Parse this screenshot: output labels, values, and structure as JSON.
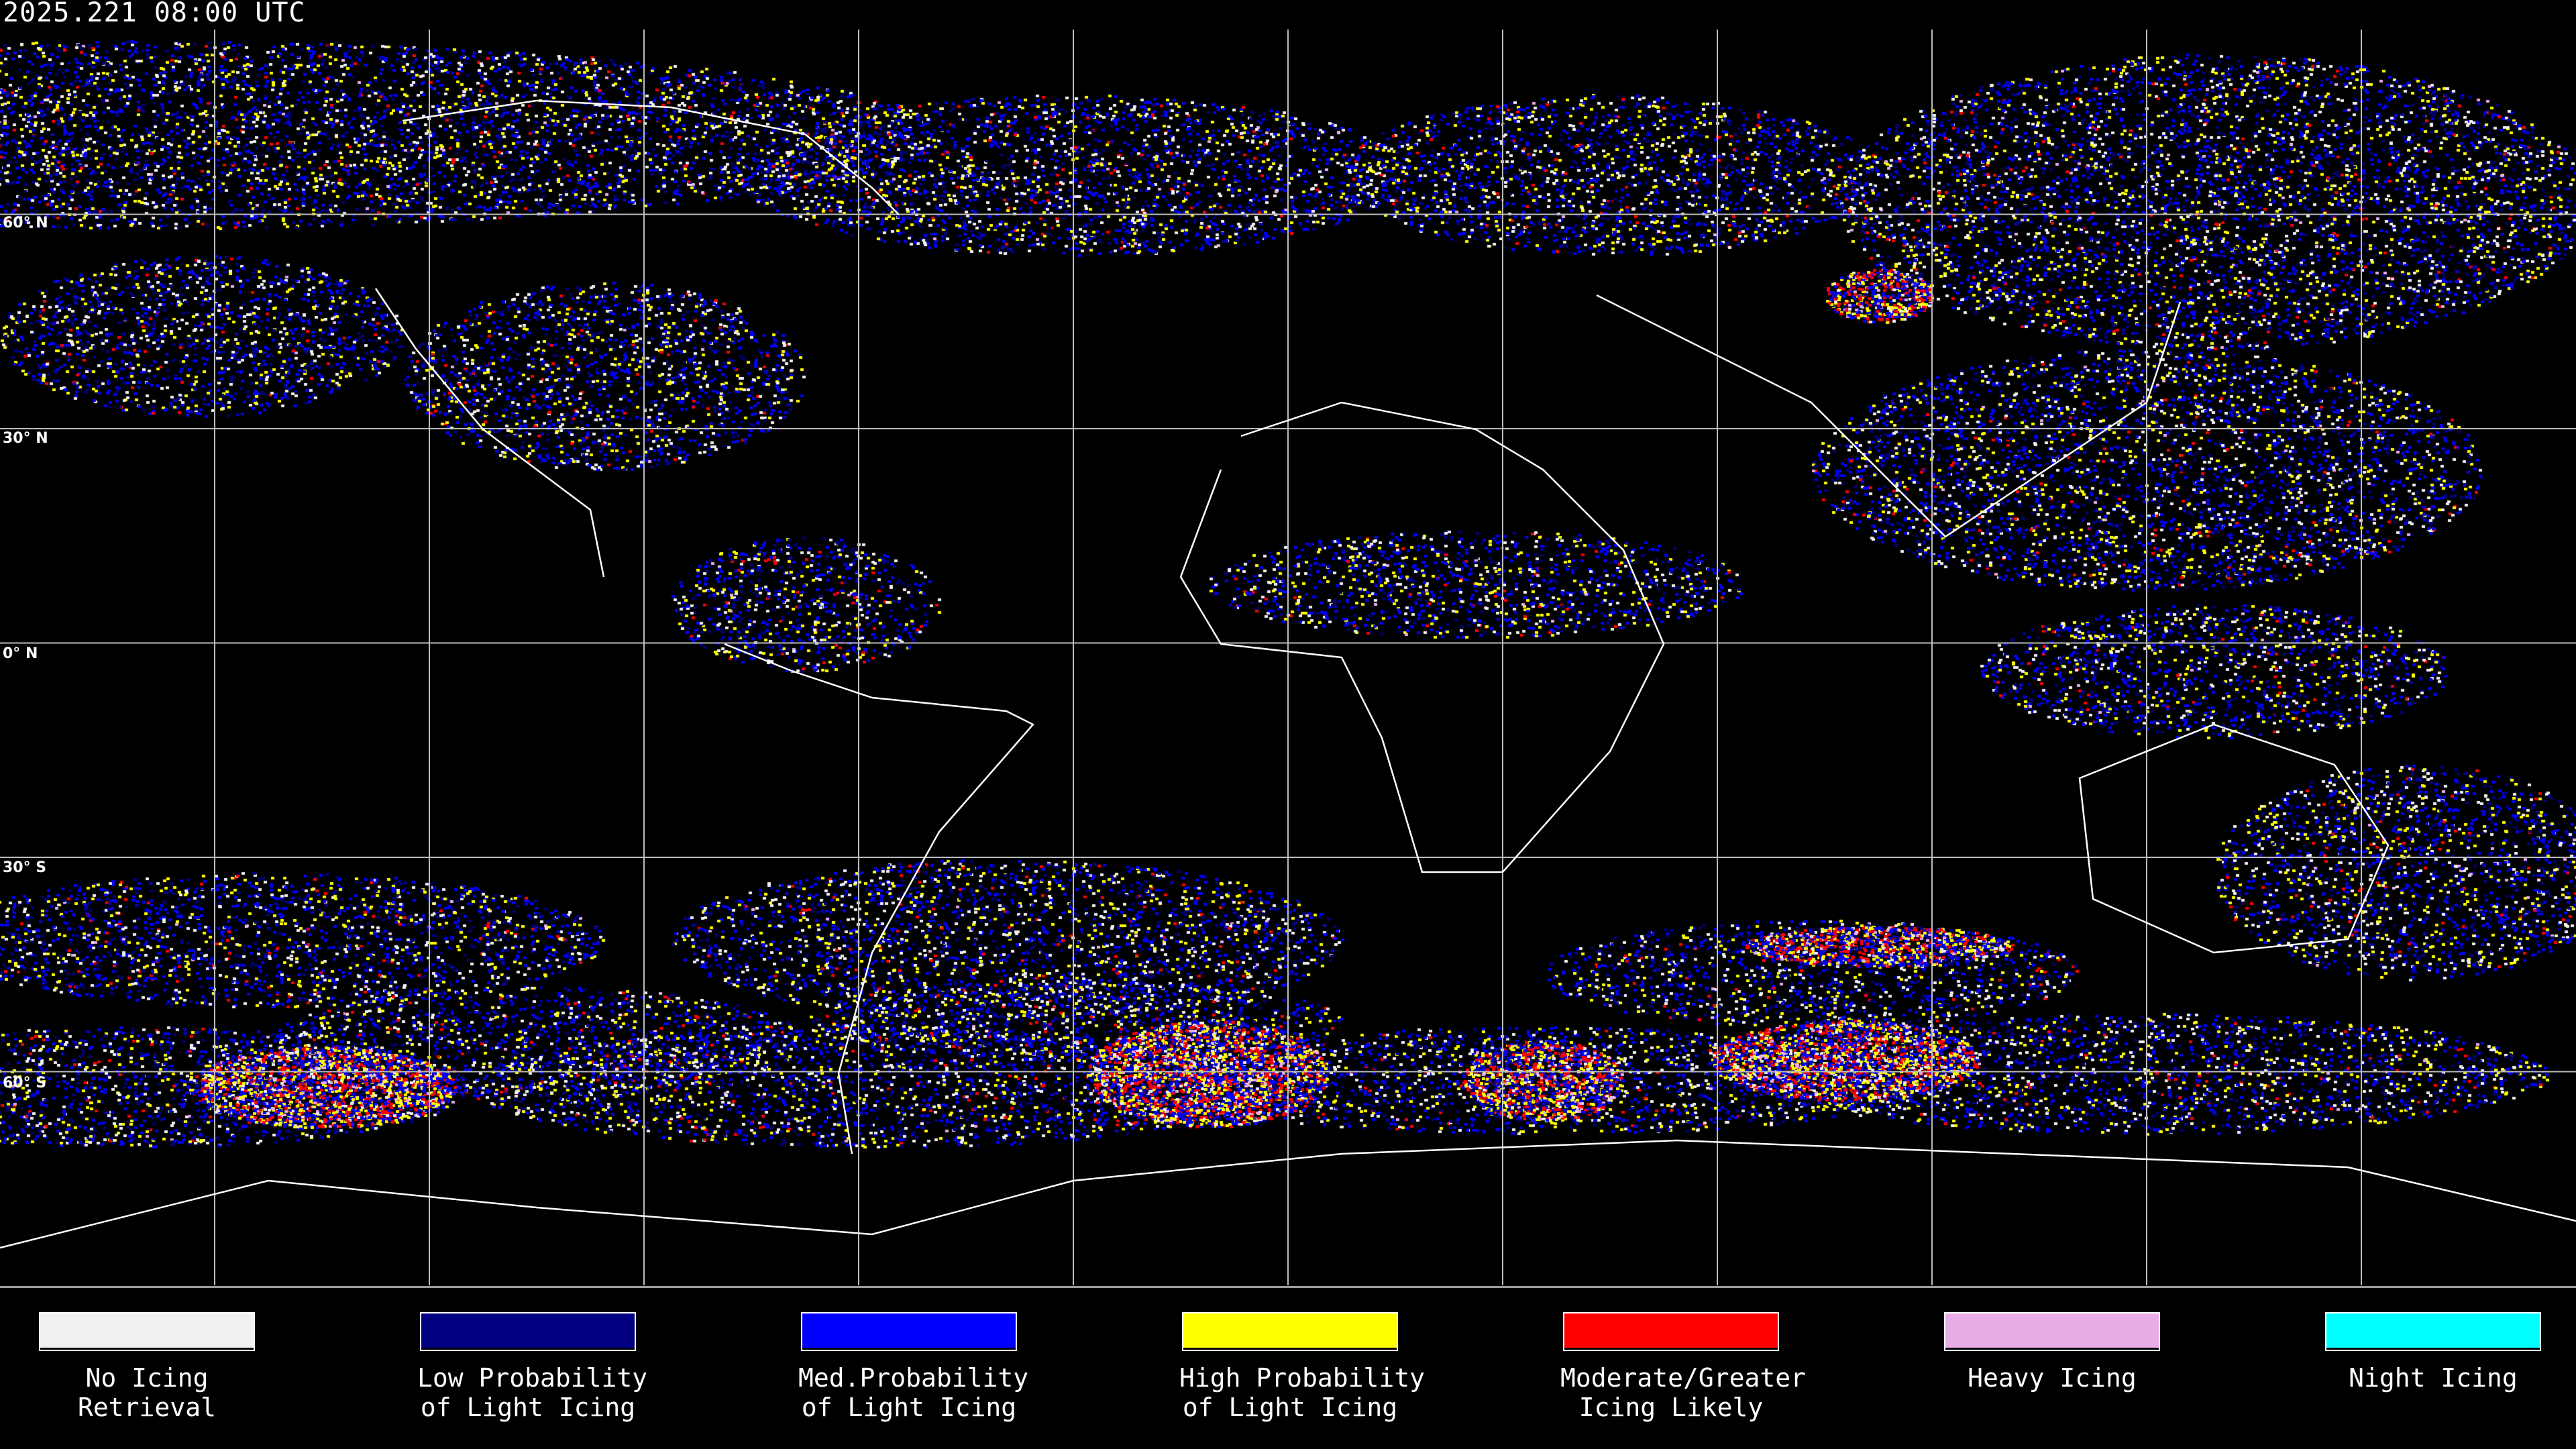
{
  "header": {
    "timestamp": "2025.221 08:00 UTC"
  },
  "map": {
    "projection": "equirectangular",
    "grid_spacing_deg": 30,
    "latitude_labels": [
      "60° N",
      "30° N",
      "0° N",
      "30° S",
      "60° S"
    ],
    "background": "#000000",
    "coastline_color": "#ffffff"
  },
  "legend": [
    {
      "label": "No Icing\nRetrieval",
      "color": "#f0f0f0"
    },
    {
      "label": "Low Probability\nof Light Icing",
      "color": "#000080"
    },
    {
      "label": "Med.Probability\nof Light Icing",
      "color": "#0000ff"
    },
    {
      "label": "High Probability\nof Light Icing",
      "color": "#ffff00"
    },
    {
      "label": "Moderate/Greater\nIcing Likely",
      "color": "#ff0000"
    },
    {
      "label": "Heavy Icing",
      "color": "#e8ace6"
    },
    {
      "label": "Night Icing",
      "color": "#00ffff"
    }
  ]
}
